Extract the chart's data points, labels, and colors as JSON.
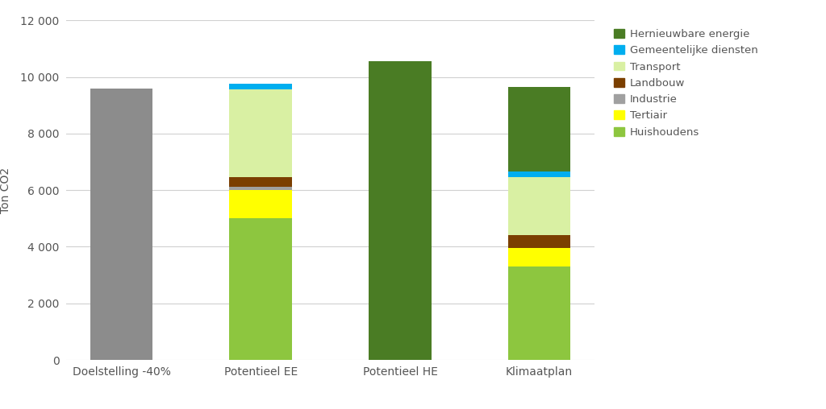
{
  "categories": [
    "Doelstelling -40%",
    "Potentieel EE",
    "Potentieel HE",
    "Klimaatplan"
  ],
  "series": [
    {
      "name": "Huishoudens",
      "color": "#8dc63f",
      "values": [
        0,
        5000,
        0,
        3300
      ]
    },
    {
      "name": "Tertiair",
      "color": "#ffff00",
      "values": [
        0,
        1000,
        0,
        650
      ]
    },
    {
      "name": "Industrie",
      "color": "#a0a0a0",
      "values": [
        0,
        130,
        0,
        0
      ]
    },
    {
      "name": "Landbouw",
      "color": "#7b3f00",
      "values": [
        0,
        330,
        0,
        450
      ]
    },
    {
      "name": "Transport",
      "color": "#d9f0a3",
      "values": [
        0,
        3100,
        0,
        2050
      ]
    },
    {
      "name": "Gemeentelijke diensten",
      "color": "#00aeef",
      "values": [
        0,
        200,
        0,
        200
      ]
    },
    {
      "name": "Hernieuwbare energie",
      "color": "#4a7c24",
      "values": [
        0,
        0,
        10550,
        3000
      ]
    },
    {
      "name": "Doelstelling",
      "color": "#8c8c8c",
      "values": [
        9598,
        0,
        0,
        0
      ]
    }
  ],
  "ylabel": "Ton CO2",
  "ylim": [
    0,
    12000
  ],
  "yticks": [
    0,
    2000,
    4000,
    6000,
    8000,
    10000,
    12000
  ],
  "ytick_labels": [
    "0",
    "2 000",
    "4 000",
    "6 000",
    "8 000",
    "10 000",
    "12 000"
  ],
  "background_color": "#ffffff",
  "grid_color": "#d0d0d0",
  "bar_width": 0.45,
  "legend_names": [
    "Hernieuwbare energie",
    "Gemeentelijke diensten",
    "Transport",
    "Landbouw",
    "Industrie",
    "Tertiair",
    "Huishoudens"
  ],
  "figsize": [
    10.24,
    5.08
  ],
  "dpi": 100
}
